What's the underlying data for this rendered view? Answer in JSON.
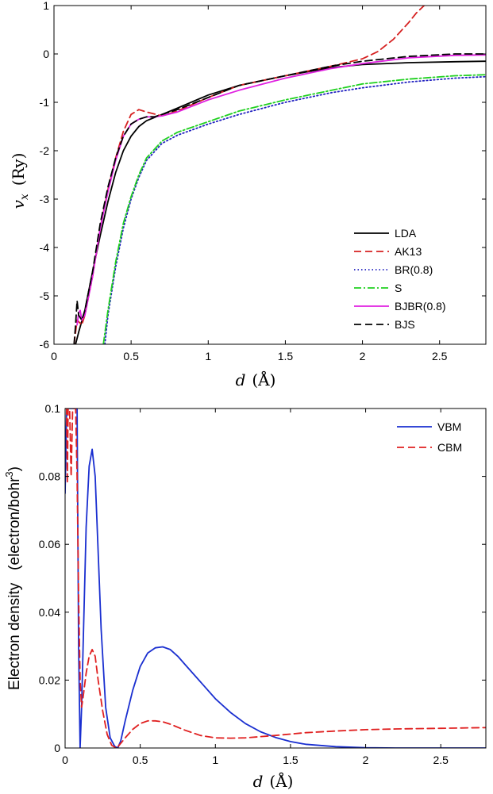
{
  "chart_data": [
    {
      "type": "line",
      "title": "",
      "xlabel_var": "d",
      "xlabel_unit": "(Å)",
      "ylabel_var": "v",
      "ylabel_sub": "x",
      "ylabel_unit": "(Ry)",
      "xlim": [
        0,
        2.8
      ],
      "ylim": [
        -6,
        1
      ],
      "xticks": [
        0,
        0.5,
        1,
        1.5,
        2,
        2.5
      ],
      "xtick_labels": [
        "0",
        "0.5",
        "1",
        "1.5",
        "2",
        "2.5"
      ],
      "yticks": [
        1,
        0,
        -1,
        -2,
        -3,
        -4,
        -5,
        -6
      ],
      "ytick_labels": [
        "1",
        "0",
        "-1",
        "-2",
        "-3",
        "-4",
        "-5",
        "-6"
      ],
      "legend_position": "bottom-right",
      "series": [
        {
          "name": "LDA",
          "color": "#000000",
          "dash": "solid",
          "x": [
            0.14,
            0.16,
            0.2,
            0.25,
            0.3,
            0.35,
            0.4,
            0.45,
            0.5,
            0.55,
            0.6,
            0.7,
            0.8,
            1.0,
            1.2,
            1.5,
            1.8,
            2.0,
            2.3,
            2.6,
            2.8
          ],
          "y": [
            -6.0,
            -5.75,
            -5.3,
            -4.5,
            -3.75,
            -3.05,
            -2.45,
            -2.0,
            -1.7,
            -1.5,
            -1.38,
            -1.25,
            -1.12,
            -0.85,
            -0.65,
            -0.45,
            -0.28,
            -0.22,
            -0.18,
            -0.16,
            -0.15
          ]
        },
        {
          "name": "AK13",
          "color": "#d62020",
          "dash": "dashed",
          "x": [
            0.13,
            0.15,
            0.18,
            0.2,
            0.25,
            0.3,
            0.35,
            0.4,
            0.45,
            0.5,
            0.55,
            0.6,
            0.7,
            0.8,
            1.0,
            1.2,
            1.5,
            1.8,
            2.0,
            2.1,
            2.2,
            2.3,
            2.35,
            2.4
          ],
          "y": [
            -6.0,
            -5.5,
            -5.6,
            -5.4,
            -4.6,
            -3.6,
            -2.8,
            -2.15,
            -1.6,
            -1.25,
            -1.15,
            -1.2,
            -1.28,
            -1.18,
            -0.9,
            -0.65,
            -0.45,
            -0.25,
            -0.1,
            0.05,
            0.3,
            0.65,
            0.85,
            1.0
          ]
        },
        {
          "name": "BR(0.8)",
          "color": "#2020c0",
          "dash": "dotted",
          "x": [
            0.33,
            0.35,
            0.4,
            0.45,
            0.5,
            0.55,
            0.6,
            0.7,
            0.8,
            1.0,
            1.2,
            1.5,
            1.8,
            2.0,
            2.3,
            2.6,
            2.8
          ],
          "y": [
            -6.0,
            -5.4,
            -4.4,
            -3.6,
            -3.0,
            -2.55,
            -2.2,
            -1.85,
            -1.68,
            -1.45,
            -1.25,
            -1.0,
            -0.8,
            -0.7,
            -0.58,
            -0.5,
            -0.47
          ]
        },
        {
          "name": "S",
          "color": "#20d020",
          "dash": "dashdot",
          "x": [
            0.32,
            0.35,
            0.4,
            0.45,
            0.5,
            0.55,
            0.6,
            0.7,
            0.8,
            1.0,
            1.2,
            1.5,
            1.8,
            2.0,
            2.3,
            2.6,
            2.8
          ],
          "y": [
            -6.0,
            -5.3,
            -4.3,
            -3.5,
            -2.95,
            -2.5,
            -2.15,
            -1.8,
            -1.62,
            -1.4,
            -1.18,
            -0.95,
            -0.75,
            -0.62,
            -0.52,
            -0.45,
            -0.43
          ]
        },
        {
          "name": "BJBR(0.8)",
          "color": "#e020e0",
          "dash": "solid",
          "x": [
            0.15,
            0.16,
            0.17,
            0.18,
            0.2,
            0.25,
            0.3,
            0.35,
            0.4,
            0.45,
            0.5,
            0.55,
            0.6,
            0.65,
            0.7,
            0.8,
            1.0,
            1.2,
            1.5,
            1.8,
            2.0,
            2.3,
            2.6,
            2.8
          ],
          "y": [
            -5.6,
            -5.35,
            -5.3,
            -5.5,
            -5.4,
            -4.6,
            -3.6,
            -2.85,
            -2.2,
            -1.7,
            -1.45,
            -1.35,
            -1.3,
            -1.3,
            -1.28,
            -1.2,
            -0.95,
            -0.75,
            -0.5,
            -0.3,
            -0.2,
            -0.08,
            -0.03,
            -0.02
          ]
        },
        {
          "name": "BJS",
          "color": "#000000",
          "dash": "dashed",
          "x": [
            0.13,
            0.14,
            0.15,
            0.16,
            0.18,
            0.2,
            0.25,
            0.3,
            0.35,
            0.4,
            0.45,
            0.5,
            0.55,
            0.6,
            0.65,
            0.7,
            0.8,
            1.0,
            1.2,
            1.5,
            1.8,
            2.0,
            2.3,
            2.6,
            2.8
          ],
          "y": [
            -6.0,
            -5.6,
            -5.1,
            -5.4,
            -5.5,
            -5.3,
            -4.5,
            -3.5,
            -2.75,
            -2.15,
            -1.7,
            -1.45,
            -1.35,
            -1.3,
            -1.3,
            -1.25,
            -1.15,
            -0.9,
            -0.65,
            -0.45,
            -0.25,
            -0.15,
            -0.05,
            0.0,
            0.0
          ]
        }
      ]
    },
    {
      "type": "line",
      "title": "",
      "xlabel_var": "d",
      "xlabel_unit": "(Å)",
      "ylabel_line1": "Electron density",
      "ylabel_line2": "(electron/bohr",
      "ylabel_sup": "3",
      "ylabel_close": ")",
      "xlim": [
        0,
        2.8
      ],
      "ylim": [
        0,
        0.1
      ],
      "xticks": [
        0,
        0.5,
        1,
        1.5,
        2,
        2.5
      ],
      "xtick_labels": [
        "0",
        "0.5",
        "1",
        "1.5",
        "2",
        "2.5"
      ],
      "yticks": [
        0,
        0.02,
        0.04,
        0.06,
        0.08,
        0.1
      ],
      "ytick_labels": [
        "0",
        "0.02",
        "0.04",
        "0.06",
        "0.08",
        "0.1"
      ],
      "legend_position": "top-right",
      "series": [
        {
          "name": "VBM",
          "color": "#1a2fd0",
          "dash": "solid",
          "x": [
            0.0,
            0.01,
            0.02,
            0.04,
            0.06,
            0.07,
            0.08,
            0.09,
            0.1,
            0.11,
            0.12,
            0.14,
            0.16,
            0.18,
            0.2,
            0.22,
            0.24,
            0.27,
            0.3,
            0.33,
            0.35,
            0.37,
            0.4,
            0.45,
            0.5,
            0.55,
            0.6,
            0.65,
            0.7,
            0.75,
            0.8,
            0.9,
            1.0,
            1.1,
            1.2,
            1.3,
            1.4,
            1.5,
            1.6,
            1.8,
            2.0,
            2.2,
            2.5,
            2.8
          ],
          "y": [
            0.075,
            0.1,
            0.1,
            0.1,
            0.1,
            0.1,
            0.1,
            0.03,
            0.0,
            0.012,
            0.03,
            0.065,
            0.083,
            0.088,
            0.08,
            0.058,
            0.035,
            0.012,
            0.003,
            0.0005,
            0.0,
            0.002,
            0.008,
            0.017,
            0.024,
            0.028,
            0.0295,
            0.0298,
            0.029,
            0.027,
            0.0245,
            0.0195,
            0.0145,
            0.0105,
            0.0072,
            0.0048,
            0.0031,
            0.0019,
            0.0011,
            0.0004,
            0.0001,
            0.0,
            0.0,
            0.0
          ]
        },
        {
          "name": "CBM",
          "color": "#e02020",
          "dash": "dashed",
          "x": [
            0.0,
            0.01,
            0.015,
            0.02,
            0.03,
            0.04,
            0.05,
            0.06,
            0.07,
            0.08,
            0.09,
            0.1,
            0.11,
            0.12,
            0.14,
            0.16,
            0.18,
            0.2,
            0.22,
            0.25,
            0.28,
            0.31,
            0.34,
            0.36,
            0.4,
            0.45,
            0.5,
            0.55,
            0.6,
            0.65,
            0.7,
            0.8,
            0.9,
            1.0,
            1.1,
            1.2,
            1.4,
            1.6,
            1.8,
            2.0,
            2.2,
            2.5,
            2.8
          ],
          "y": [
            0.1,
            0.1,
            0.078,
            0.1,
            0.1,
            0.08,
            0.1,
            0.1,
            0.1,
            0.08,
            0.045,
            0.02,
            0.012,
            0.015,
            0.022,
            0.027,
            0.029,
            0.027,
            0.02,
            0.011,
            0.004,
            0.0008,
            0.0,
            0.0008,
            0.003,
            0.0055,
            0.0072,
            0.008,
            0.008,
            0.0077,
            0.007,
            0.0052,
            0.0037,
            0.003,
            0.0029,
            0.003,
            0.0037,
            0.0045,
            0.005,
            0.0054,
            0.0056,
            0.0058,
            0.006
          ]
        }
      ]
    }
  ]
}
